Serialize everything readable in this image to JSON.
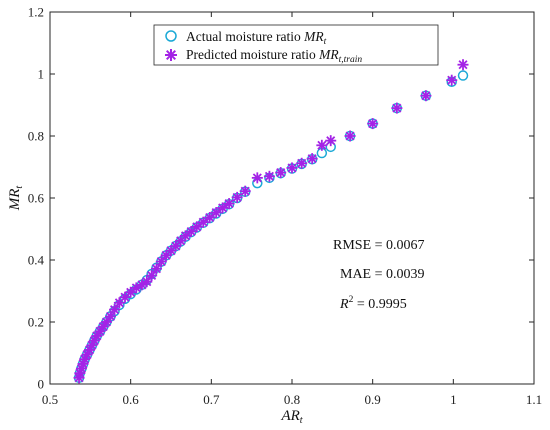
{
  "chart_data": {
    "type": "scatter",
    "xlabel": "AR",
    "xlabel_sub": "t",
    "ylabel": "MR",
    "ylabel_sub": "t",
    "xlim": [
      0.5,
      1.1
    ],
    "ylim": [
      0,
      1.2
    ],
    "xticks": [
      "0.5",
      "0.6",
      "0.7",
      "0.8",
      "0.9",
      "1",
      "1.1"
    ],
    "yticks": [
      "0",
      "0.2",
      "0.4",
      "0.6",
      "0.8",
      "1",
      "1.2"
    ],
    "legend_position": "top-center",
    "series": [
      {
        "name": "Actual moisture ratio MR_t",
        "label_text": "Actual moisture ratio ",
        "label_math": "MR",
        "label_sub": "t",
        "marker": "circle",
        "color": "#1BA9D6",
        "points": [
          [
            0.536,
            0.02
          ],
          [
            0.537,
            0.035
          ],
          [
            0.539,
            0.05
          ],
          [
            0.541,
            0.065
          ],
          [
            0.543,
            0.08
          ],
          [
            0.546,
            0.095
          ],
          [
            0.549,
            0.11
          ],
          [
            0.552,
            0.125
          ],
          [
            0.555,
            0.14
          ],
          [
            0.558,
            0.155
          ],
          [
            0.562,
            0.17
          ],
          [
            0.566,
            0.185
          ],
          [
            0.57,
            0.2
          ],
          [
            0.575,
            0.218
          ],
          [
            0.58,
            0.235
          ],
          [
            0.586,
            0.255
          ],
          [
            0.593,
            0.275
          ],
          [
            0.6,
            0.29
          ],
          [
            0.607,
            0.305
          ],
          [
            0.614,
            0.32
          ],
          [
            0.62,
            0.335
          ],
          [
            0.626,
            0.355
          ],
          [
            0.632,
            0.375
          ],
          [
            0.638,
            0.395
          ],
          [
            0.644,
            0.415
          ],
          [
            0.65,
            0.43
          ],
          [
            0.656,
            0.445
          ],
          [
            0.662,
            0.46
          ],
          [
            0.668,
            0.475
          ],
          [
            0.675,
            0.49
          ],
          [
            0.682,
            0.505
          ],
          [
            0.69,
            0.52
          ],
          [
            0.698,
            0.535
          ],
          [
            0.706,
            0.55
          ],
          [
            0.714,
            0.565
          ],
          [
            0.722,
            0.58
          ],
          [
            0.732,
            0.6
          ],
          [
            0.742,
            0.62
          ],
          [
            0.757,
            0.648
          ],
          [
            0.772,
            0.665
          ],
          [
            0.786,
            0.68
          ],
          [
            0.8,
            0.695
          ],
          [
            0.812,
            0.71
          ],
          [
            0.825,
            0.725
          ],
          [
            0.837,
            0.745
          ],
          [
            0.848,
            0.765
          ],
          [
            0.872,
            0.8
          ],
          [
            0.9,
            0.84
          ],
          [
            0.93,
            0.89
          ],
          [
            0.966,
            0.93
          ],
          [
            0.998,
            0.975
          ],
          [
            1.012,
            0.995
          ]
        ]
      },
      {
        "name": "Predicted moisture ratio MR_t,train",
        "label_text": "Predicted moisture ratio ",
        "label_math": "MR",
        "label_sub": "t,train",
        "marker": "asterisk",
        "color": "#A423E6",
        "points": [
          [
            0.536,
            0.02
          ],
          [
            0.537,
            0.035
          ],
          [
            0.539,
            0.05
          ],
          [
            0.541,
            0.065
          ],
          [
            0.543,
            0.08
          ],
          [
            0.546,
            0.095
          ],
          [
            0.549,
            0.11
          ],
          [
            0.552,
            0.125
          ],
          [
            0.555,
            0.14
          ],
          [
            0.558,
            0.155
          ],
          [
            0.562,
            0.17
          ],
          [
            0.566,
            0.185
          ],
          [
            0.57,
            0.2
          ],
          [
            0.575,
            0.218
          ],
          [
            0.58,
            0.24
          ],
          [
            0.586,
            0.262
          ],
          [
            0.593,
            0.28
          ],
          [
            0.6,
            0.296
          ],
          [
            0.607,
            0.31
          ],
          [
            0.614,
            0.32
          ],
          [
            0.62,
            0.33
          ],
          [
            0.626,
            0.35
          ],
          [
            0.632,
            0.372
          ],
          [
            0.638,
            0.395
          ],
          [
            0.644,
            0.415
          ],
          [
            0.65,
            0.43
          ],
          [
            0.656,
            0.445
          ],
          [
            0.662,
            0.462
          ],
          [
            0.668,
            0.478
          ],
          [
            0.675,
            0.492
          ],
          [
            0.682,
            0.507
          ],
          [
            0.69,
            0.522
          ],
          [
            0.698,
            0.537
          ],
          [
            0.706,
            0.553
          ],
          [
            0.714,
            0.568
          ],
          [
            0.722,
            0.582
          ],
          [
            0.732,
            0.602
          ],
          [
            0.742,
            0.622
          ],
          [
            0.757,
            0.665
          ],
          [
            0.772,
            0.67
          ],
          [
            0.786,
            0.682
          ],
          [
            0.8,
            0.697
          ],
          [
            0.812,
            0.712
          ],
          [
            0.825,
            0.727
          ],
          [
            0.837,
            0.77
          ],
          [
            0.848,
            0.785
          ],
          [
            0.872,
            0.8
          ],
          [
            0.9,
            0.84
          ],
          [
            0.93,
            0.89
          ],
          [
            0.966,
            0.93
          ],
          [
            0.998,
            0.98
          ],
          [
            1.012,
            1.03
          ]
        ]
      }
    ],
    "stats": {
      "rmse": "RMSE = 0.0067",
      "mae": "MAE = 0.0039",
      "r2_symbol": "R",
      "r2_sup": "2",
      "r2_value": " = 0.9995"
    }
  }
}
